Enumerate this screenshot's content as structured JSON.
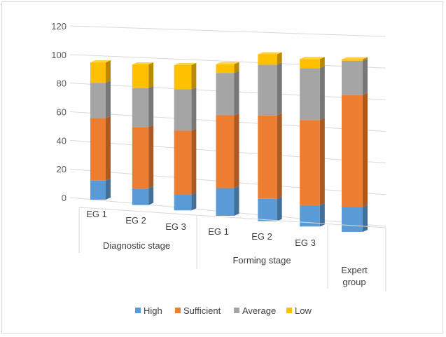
{
  "chart_data": {
    "type": "bar",
    "stacked": true,
    "three_d": true,
    "title": "",
    "xlabel": "",
    "ylabel": "",
    "ylim": [
      0,
      120
    ],
    "yticks": [
      0,
      20,
      40,
      60,
      80,
      100,
      120
    ],
    "grid": true,
    "legend_position": "bottom",
    "categories": [
      "EG 1",
      "EG 2",
      "EG 3",
      "EG 1",
      "EG 2",
      "EG 3",
      "Expert group"
    ],
    "groups": [
      {
        "label": "Diagnostic stage",
        "categories": [
          "EG 1",
          "EG 2",
          "EG 3"
        ]
      },
      {
        "label": "Forming stage",
        "categories": [
          "EG 1",
          "EG 2",
          "EG 3"
        ]
      },
      {
        "label": "Expert group",
        "categories": []
      }
    ],
    "series": [
      {
        "name": "High",
        "color": "#5b9bd5",
        "values": [
          14,
          12,
          11,
          19,
          15,
          14,
          16
        ]
      },
      {
        "name": "Sufficient",
        "color": "#ed7d31",
        "values": [
          46,
          44,
          45,
          50,
          56,
          56,
          72
        ]
      },
      {
        "name": "Average",
        "color": "#a5a5a5",
        "values": [
          26,
          28,
          29,
          29,
          34,
          34,
          22
        ]
      },
      {
        "name": "Low",
        "color": "#ffc000",
        "values": [
          15,
          17,
          17,
          6,
          7,
          6,
          1
        ]
      }
    ]
  }
}
